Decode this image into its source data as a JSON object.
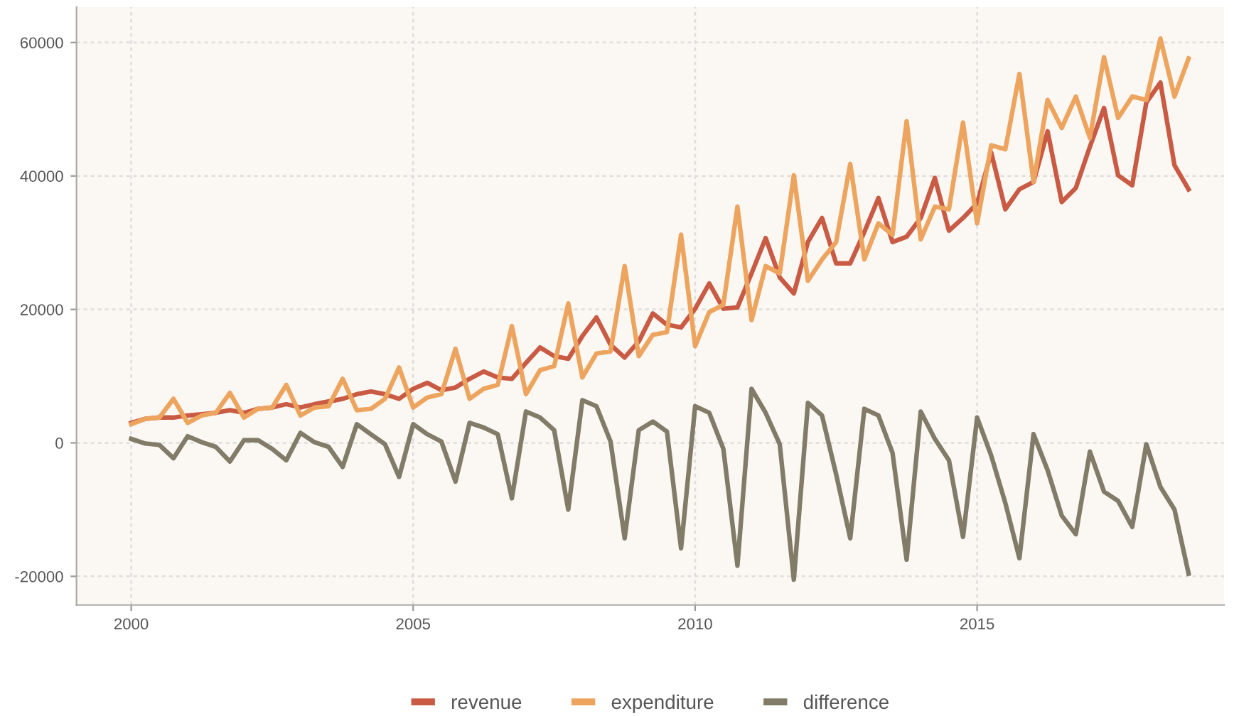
{
  "chart_data": {
    "type": "line",
    "x": [
      2000,
      2000.25,
      2000.5,
      2000.75,
      2001,
      2001.25,
      2001.5,
      2001.75,
      2002,
      2002.25,
      2002.5,
      2002.75,
      2003,
      2003.25,
      2003.5,
      2003.75,
      2004,
      2004.25,
      2004.5,
      2004.75,
      2005,
      2005.25,
      2005.5,
      2005.75,
      2006,
      2006.25,
      2006.5,
      2006.75,
      2007,
      2007.25,
      2007.5,
      2007.75,
      2008,
      2008.25,
      2008.5,
      2008.75,
      2009,
      2009.25,
      2009.5,
      2009.75,
      2010,
      2010.25,
      2010.5,
      2010.75,
      2011,
      2011.25,
      2011.5,
      2011.75,
      2012,
      2012.25,
      2012.5,
      2012.75,
      2013,
      2013.25,
      2013.5,
      2013.75,
      2014,
      2014.25,
      2014.5,
      2014.75,
      2015,
      2015.25,
      2015.5,
      2015.75,
      2016,
      2016.25,
      2016.5,
      2016.75,
      2017,
      2017.25,
      2017.5,
      2017.75,
      2018,
      2018.25,
      2018.5,
      2018.75
    ],
    "series": [
      {
        "name": "revenue",
        "color": "#c95b45",
        "values": [
          3000,
          3600,
          3800,
          3800,
          4100,
          4300,
          4500,
          4900,
          4500,
          5100,
          5300,
          5800,
          5300,
          5800,
          6200,
          6600,
          7300,
          7700,
          7300,
          6600,
          8100,
          9000,
          7900,
          8300,
          9600,
          10700,
          9800,
          9600,
          12000,
          14300,
          13000,
          12600,
          16000,
          18800,
          14700,
          12800,
          15200,
          19400,
          17700,
          17300,
          20100,
          23900,
          20100,
          20300,
          25400,
          30700,
          24800,
          22400,
          30100,
          33700,
          26900,
          26900,
          31600,
          36700,
          30100,
          30900,
          33700,
          39700,
          31800,
          33700,
          35900,
          43500,
          35000,
          38000,
          39100,
          46700,
          36100,
          38200,
          44400,
          50200,
          40100,
          38600,
          51000,
          54000,
          41600,
          38000
        ]
      },
      {
        "name": "expenditure",
        "color": "#eda45e",
        "values": [
          2800,
          3600,
          3800,
          6600,
          3000,
          4100,
          4500,
          7500,
          3800,
          5100,
          5300,
          8700,
          4100,
          5300,
          5500,
          9600,
          4900,
          5100,
          6600,
          11300,
          5300,
          6800,
          7300,
          14100,
          6600,
          8100,
          8700,
          17500,
          7300,
          10900,
          11500,
          20900,
          9800,
          13400,
          13700,
          26500,
          13000,
          16200,
          16600,
          31200,
          14500,
          19600,
          20700,
          35400,
          18400,
          26500,
          25400,
          40100,
          24300,
          27500,
          30100,
          41800,
          27500,
          32900,
          31200,
          48200,
          30500,
          35400,
          35000,
          48000,
          32900,
          44600,
          44000,
          55300,
          39100,
          51400,
          47200,
          51900,
          45700,
          57800,
          48700,
          51900,
          51400,
          60600,
          51900,
          57600
        ]
      },
      {
        "name": "difference",
        "color": "#827b68",
        "values": [
          600,
          -100,
          -300,
          -2300,
          1000,
          100,
          -600,
          -2800,
          400,
          400,
          -900,
          -2600,
          1500,
          100,
          -600,
          -3600,
          2800,
          1300,
          -200,
          -5100,
          2800,
          1300,
          200,
          -5800,
          3000,
          2300,
          1300,
          -8300,
          4700,
          3800,
          1900,
          -10000,
          6400,
          5500,
          200,
          -14300,
          1900,
          3200,
          1700,
          -15800,
          5500,
          4500,
          -900,
          -18400,
          8100,
          4500,
          -200,
          -20500,
          6000,
          4100,
          -4700,
          -14300,
          5100,
          4100,
          -1500,
          -17500,
          4700,
          600,
          -2600,
          -14100,
          3800,
          -1900,
          -9000,
          -17300,
          1300,
          -4100,
          -10900,
          -13700,
          -1300,
          -7300,
          -8700,
          -12600,
          -200,
          -6600,
          -10000,
          -19600
        ]
      }
    ],
    "xlim": [
      1999.03,
      2019.38
    ],
    "xticks": [
      2000,
      2005,
      2010,
      2015
    ],
    "ylim": [
      -24300,
      65300
    ],
    "yticks": [
      -20000,
      0,
      20000,
      40000,
      60000
    ],
    "grid": true,
    "legend": "bottom",
    "marker": "none",
    "line_style": "solid"
  }
}
